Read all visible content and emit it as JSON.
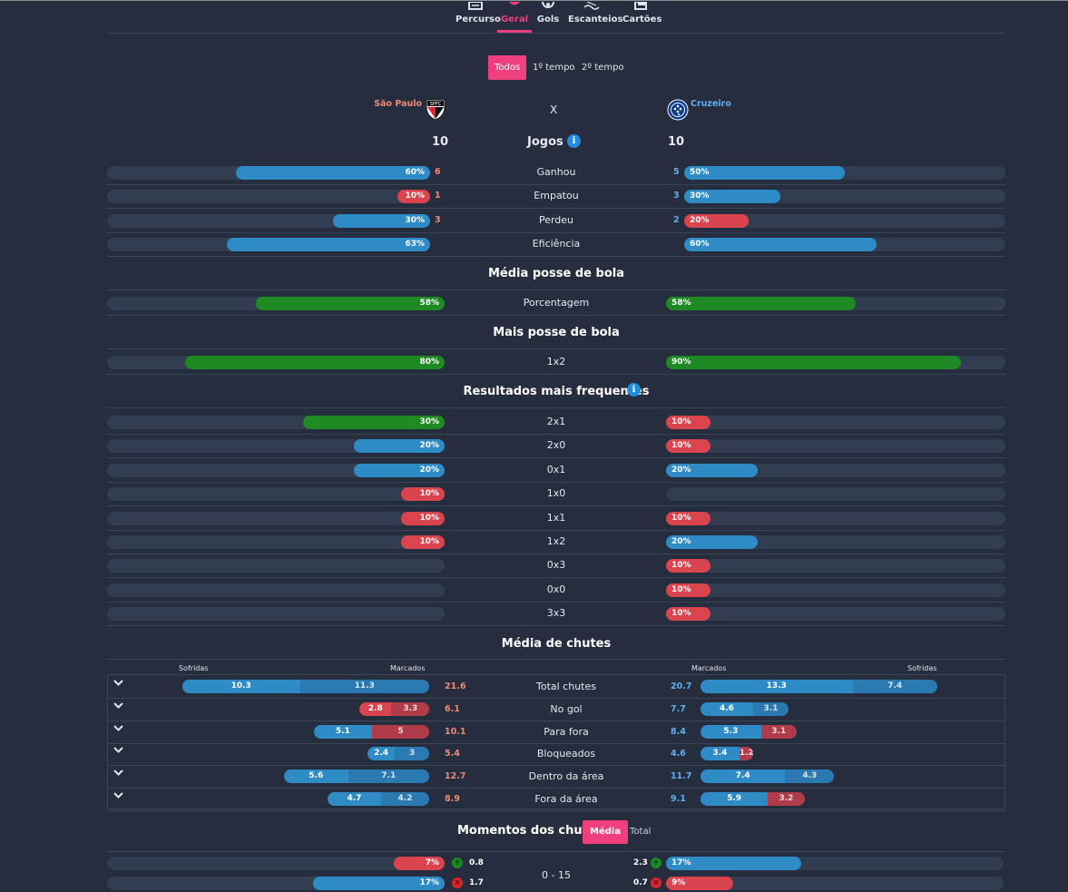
{
  "nav": {
    "tabs": [
      {
        "label": "Percurso",
        "icon": "route-icon"
      },
      {
        "label": "Geral",
        "icon": "chart-icon"
      },
      {
        "label": "Gols",
        "icon": "ball-icon"
      },
      {
        "label": "Escanteios",
        "icon": "corner-icon"
      },
      {
        "label": "Cartões",
        "icon": "cards-icon"
      }
    ],
    "active": "Geral"
  },
  "periods": [
    "Todos",
    "1º tempo",
    "2º tempo"
  ],
  "match": {
    "home": "São Paulo",
    "sep": "X",
    "away": "Cruzeiro",
    "home_games": "10",
    "away_games": "10",
    "games_label": "Jogos",
    "info": "i"
  },
  "colors": {
    "accent": "#ef3f7c",
    "blue": "#2e8bc6",
    "red": "#d9444f",
    "green": "#1f8a23",
    "home_count": "#ef8a73",
    "away_count": "#5fb0ee"
  },
  "overall": [
    {
      "label": "Ganhou",
      "home_pct": "60%",
      "home_val": 60,
      "home_count": "6",
      "home_color": "blue",
      "away_pct": "50%",
      "away_val": 50,
      "away_count": "5",
      "away_color": "blue"
    },
    {
      "label": "Empatou",
      "home_pct": "10%",
      "home_val": 10,
      "home_count": "1",
      "home_color": "red",
      "away_pct": "30%",
      "away_val": 30,
      "away_count": "3",
      "away_color": "blue"
    },
    {
      "label": "Perdeu",
      "home_pct": "30%",
      "home_val": 30,
      "home_count": "3",
      "home_color": "blue",
      "away_pct": "20%",
      "away_val": 20,
      "away_count": "2",
      "away_color": "red"
    },
    {
      "label": "Eficiência",
      "home_pct": "63%",
      "home_val": 63,
      "home_count": "",
      "home_color": "blue",
      "away_pct": "60%",
      "away_val": 60,
      "away_count": "",
      "away_color": "blue"
    }
  ],
  "possession": {
    "title": "Média posse de bola",
    "rows": [
      {
        "label": "Porcentagem",
        "home_pct": "58%",
        "home_val": 56,
        "home_color": "green",
        "away_pct": "58%",
        "away_val": 56,
        "away_color": "green"
      }
    ]
  },
  "more_possession": {
    "title": "Mais posse de bola",
    "rows": [
      {
        "label": "1x2",
        "home_pct": "80%",
        "home_val": 77,
        "home_color": "green",
        "away_pct": "90%",
        "away_val": 87,
        "away_color": "green"
      }
    ]
  },
  "results": {
    "title": "Resultados mais frequentes",
    "info": "i",
    "rows": [
      {
        "label": "2x1",
        "home_pct": "30%",
        "home_val": 42,
        "home_color": "green",
        "away_pct": "10%",
        "away_val": 13,
        "away_color": "red"
      },
      {
        "label": "2x0",
        "home_pct": "20%",
        "home_val": 27,
        "home_color": "blue",
        "away_pct": "10%",
        "away_val": 13,
        "away_color": "red"
      },
      {
        "label": "0x1",
        "home_pct": "20%",
        "home_val": 27,
        "home_color": "blue",
        "away_pct": "20%",
        "away_val": 27,
        "away_color": "blue"
      },
      {
        "label": "1x0",
        "home_pct": "10%",
        "home_val": 13,
        "home_color": "red",
        "away_pct": "",
        "away_val": 0,
        "away_color": "blue"
      },
      {
        "label": "1x1",
        "home_pct": "10%",
        "home_val": 13,
        "home_color": "red",
        "away_pct": "10%",
        "away_val": 13,
        "away_color": "red"
      },
      {
        "label": "1x2",
        "home_pct": "10%",
        "home_val": 13,
        "home_color": "red",
        "away_pct": "20%",
        "away_val": 27,
        "away_color": "blue"
      },
      {
        "label": "0x3",
        "home_pct": "",
        "home_val": 0,
        "home_color": "blue",
        "away_pct": "10%",
        "away_val": 13,
        "away_color": "red"
      },
      {
        "label": "0x0",
        "home_pct": "",
        "home_val": 0,
        "home_color": "blue",
        "away_pct": "10%",
        "away_val": 13,
        "away_color": "red"
      },
      {
        "label": "3x3",
        "home_pct": "",
        "home_val": 0,
        "home_color": "blue",
        "away_pct": "10%",
        "away_val": 13,
        "away_color": "red"
      }
    ]
  },
  "shots": {
    "title": "Média de chutes",
    "hdr_sofridas": "Sofridas",
    "hdr_marcados": "Marcados",
    "rows": [
      {
        "label": "Total chutes",
        "home_total": "21.6",
        "home_suf": "10.3",
        "home_mar": "11.3",
        "away_total": "20.7",
        "away_mar": "13.3",
        "away_suf": "7.4",
        "color": "blue"
      },
      {
        "label": "No gol",
        "home_total": "6.1",
        "home_suf": "2.8",
        "home_mar": "3.3",
        "away_total": "7.7",
        "away_mar": "4.6",
        "away_suf": "3.1",
        "color": "mix1"
      },
      {
        "label": "Para fora",
        "home_total": "10.1",
        "home_suf": "5.1",
        "home_mar": "5",
        "away_total": "8.4",
        "away_mar": "5.3",
        "away_suf": "3.1",
        "color": "mix2"
      },
      {
        "label": "Bloqueados",
        "home_total": "5.4",
        "home_suf": "2.4",
        "home_mar": "3",
        "away_total": "4.6",
        "away_mar": "3.4",
        "away_suf": "1.2",
        "color": "mix3"
      },
      {
        "label": "Dentro da área",
        "home_total": "12.7",
        "home_suf": "5.6",
        "home_mar": "7.1",
        "away_total": "11.7",
        "away_mar": "7.4",
        "away_suf": "4.3",
        "color": "blue"
      },
      {
        "label": "Fora da área",
        "home_total": "8.9",
        "home_suf": "4.7",
        "home_mar": "4.2",
        "away_total": "9.1",
        "away_mar": "5.9",
        "away_suf": "3.2",
        "color": "mix4"
      }
    ]
  },
  "moments": {
    "title": "Momentos dos chutes",
    "toggle": [
      "Média",
      "Total"
    ],
    "range": "0 - 15",
    "home": [
      {
        "pct": "7%",
        "val": 15,
        "color": "red",
        "num": "0.8",
        "kind": "g"
      },
      {
        "pct": "17%",
        "val": 39,
        "color": "blue",
        "num": "1.7",
        "kind": "r"
      }
    ],
    "away": [
      {
        "pct": "17%",
        "val": 40,
        "color": "blue",
        "num": "2.3",
        "kind": "g"
      },
      {
        "pct": "9%",
        "val": 20,
        "color": "red",
        "num": "0.7",
        "kind": "r"
      }
    ]
  }
}
